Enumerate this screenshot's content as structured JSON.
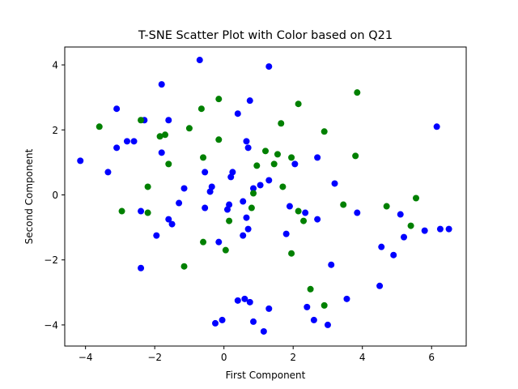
{
  "chart_data": {
    "type": "scatter",
    "title": "T-SNE Scatter Plot with Color based on Q21",
    "xlabel": "First Component",
    "ylabel": "Second Component",
    "xlim": [
      -4.6,
      7.0
    ],
    "ylim": [
      -4.65,
      4.55
    ],
    "xticks": [
      -4,
      -2,
      0,
      2,
      4,
      6
    ],
    "yticks": [
      -4,
      -2,
      0,
      2,
      4
    ],
    "grid": false,
    "legend": "none",
    "colors": {
      "blue": "#0000ff",
      "green": "#008000"
    },
    "series": [
      {
        "color": "blue",
        "points": [
          [
            -4.15,
            1.05
          ],
          [
            -3.1,
            2.65
          ],
          [
            -3.1,
            1.45
          ],
          [
            -3.35,
            0.7
          ],
          [
            -2.8,
            1.65
          ],
          [
            -2.6,
            1.65
          ],
          [
            -2.3,
            2.3
          ],
          [
            -2.4,
            -0.5
          ],
          [
            -2.4,
            -2.25
          ],
          [
            -1.95,
            -1.25
          ],
          [
            -1.8,
            3.4
          ],
          [
            -1.8,
            1.3
          ],
          [
            -1.6,
            2.3
          ],
          [
            -1.6,
            -0.75
          ],
          [
            -1.5,
            -0.9
          ],
          [
            -1.3,
            -0.25
          ],
          [
            -1.15,
            0.2
          ],
          [
            -0.7,
            4.15
          ],
          [
            -0.55,
            0.7
          ],
          [
            -0.55,
            -0.4
          ],
          [
            -0.4,
            0.1
          ],
          [
            -0.35,
            0.25
          ],
          [
            -0.15,
            -1.45
          ],
          [
            0.1,
            -0.45
          ],
          [
            0.15,
            -0.3
          ],
          [
            0.2,
            0.55
          ],
          [
            0.25,
            0.7
          ],
          [
            0.4,
            2.5
          ],
          [
            0.55,
            -0.2
          ],
          [
            0.55,
            -1.25
          ],
          [
            0.65,
            -0.7
          ],
          [
            0.65,
            1.65
          ],
          [
            0.7,
            1.45
          ],
          [
            0.7,
            -1.05
          ],
          [
            0.75,
            2.9
          ],
          [
            0.85,
            0.2
          ],
          [
            1.05,
            0.3
          ],
          [
            1.3,
            0.45
          ],
          [
            1.3,
            3.95
          ],
          [
            1.8,
            -1.2
          ],
          [
            1.9,
            -0.35
          ],
          [
            2.05,
            0.95
          ],
          [
            2.35,
            -0.55
          ],
          [
            2.7,
            1.15
          ],
          [
            2.7,
            -0.75
          ],
          [
            3.1,
            -2.15
          ],
          [
            3.2,
            0.35
          ],
          [
            3.85,
            -0.55
          ],
          [
            4.5,
            -2.8
          ],
          [
            4.55,
            -1.6
          ],
          [
            4.9,
            -1.85
          ],
          [
            5.1,
            -0.6
          ],
          [
            5.2,
            -1.3
          ],
          [
            5.8,
            -1.1
          ],
          [
            6.15,
            2.1
          ],
          [
            6.25,
            -1.05
          ],
          [
            6.5,
            -1.05
          ],
          [
            -0.25,
            -3.95
          ],
          [
            -0.05,
            -3.85
          ],
          [
            0.4,
            -3.25
          ],
          [
            0.6,
            -3.2
          ],
          [
            0.75,
            -3.3
          ],
          [
            0.85,
            -3.9
          ],
          [
            1.15,
            -4.2
          ],
          [
            1.3,
            -3.5
          ],
          [
            2.4,
            -3.45
          ],
          [
            2.6,
            -3.85
          ],
          [
            3.0,
            -4.0
          ],
          [
            3.55,
            -3.2
          ]
        ]
      },
      {
        "color": "green",
        "points": [
          [
            -3.6,
            2.1
          ],
          [
            -2.95,
            -0.5
          ],
          [
            -2.4,
            2.3
          ],
          [
            -2.2,
            0.25
          ],
          [
            -2.2,
            -0.55
          ],
          [
            -1.85,
            1.8
          ],
          [
            -1.7,
            1.85
          ],
          [
            -1.6,
            0.95
          ],
          [
            -1.15,
            -2.2
          ],
          [
            -1.0,
            2.05
          ],
          [
            -0.65,
            2.65
          ],
          [
            -0.6,
            1.15
          ],
          [
            -0.6,
            -1.45
          ],
          [
            -0.15,
            2.95
          ],
          [
            -0.15,
            1.7
          ],
          [
            0.05,
            -1.7
          ],
          [
            0.15,
            -0.8
          ],
          [
            0.8,
            -0.4
          ],
          [
            0.85,
            0.05
          ],
          [
            0.95,
            0.9
          ],
          [
            1.2,
            1.35
          ],
          [
            1.45,
            0.95
          ],
          [
            1.55,
            1.25
          ],
          [
            1.65,
            2.2
          ],
          [
            1.7,
            0.25
          ],
          [
            1.95,
            1.15
          ],
          [
            1.95,
            -1.8
          ],
          [
            2.15,
            2.8
          ],
          [
            2.15,
            -0.5
          ],
          [
            2.3,
            -0.8
          ],
          [
            2.5,
            -2.9
          ],
          [
            2.9,
            1.95
          ],
          [
            2.9,
            -3.4
          ],
          [
            3.45,
            -0.3
          ],
          [
            3.8,
            1.2
          ],
          [
            3.85,
            3.15
          ],
          [
            4.7,
            -0.35
          ],
          [
            5.4,
            -0.95
          ],
          [
            5.55,
            -0.1
          ]
        ]
      }
    ]
  }
}
